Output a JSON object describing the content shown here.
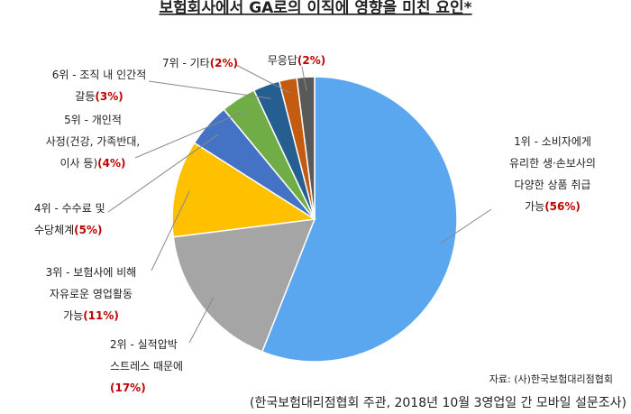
{
  "title": "보험회사에서 GA로의 이직에 영향을 미친 요인*",
  "chart_data": {
    "type": "pie",
    "categories": [
      [
        "1위 - 소비자에게",
        "유리한 생·손보사의",
        "다양한 상품 취급",
        "가능"
      ],
      [
        "2위 - 실적압박",
        "스트레스 때문에"
      ],
      [
        "3위 - 보험사에 비해",
        "자유로운 영업활동",
        "가능"
      ],
      [
        "4위 - 수수료 및",
        "수당체계"
      ],
      [
        "5위 - 개인적",
        "사정(건강, 가족반대,",
        "이사 등)"
      ],
      [
        "6위 - 조직 내 인간적",
        "갈등"
      ],
      [
        "7위 - 기타"
      ],
      [
        "무응답"
      ]
    ],
    "values": [
      56,
      17,
      11,
      5,
      4,
      3,
      2,
      2
    ],
    "value_labels": [
      "(56%)",
      "(17%)",
      "(11%)",
      "(5%)",
      "(4%)",
      "(3%)",
      "(2%)",
      "(2%)"
    ],
    "colors": [
      "#5ba7ef",
      "#a5a5a5",
      "#ffc000",
      "#4472c4",
      "#70ad47",
      "#255e91",
      "#c55a11",
      "#595959"
    ],
    "source": "자료: (사)한국보험대리점협회"
  },
  "footnote": "(한국보험대리점협회 주관, 2018년 10월 3영업일 간 모바일 설문조사)"
}
